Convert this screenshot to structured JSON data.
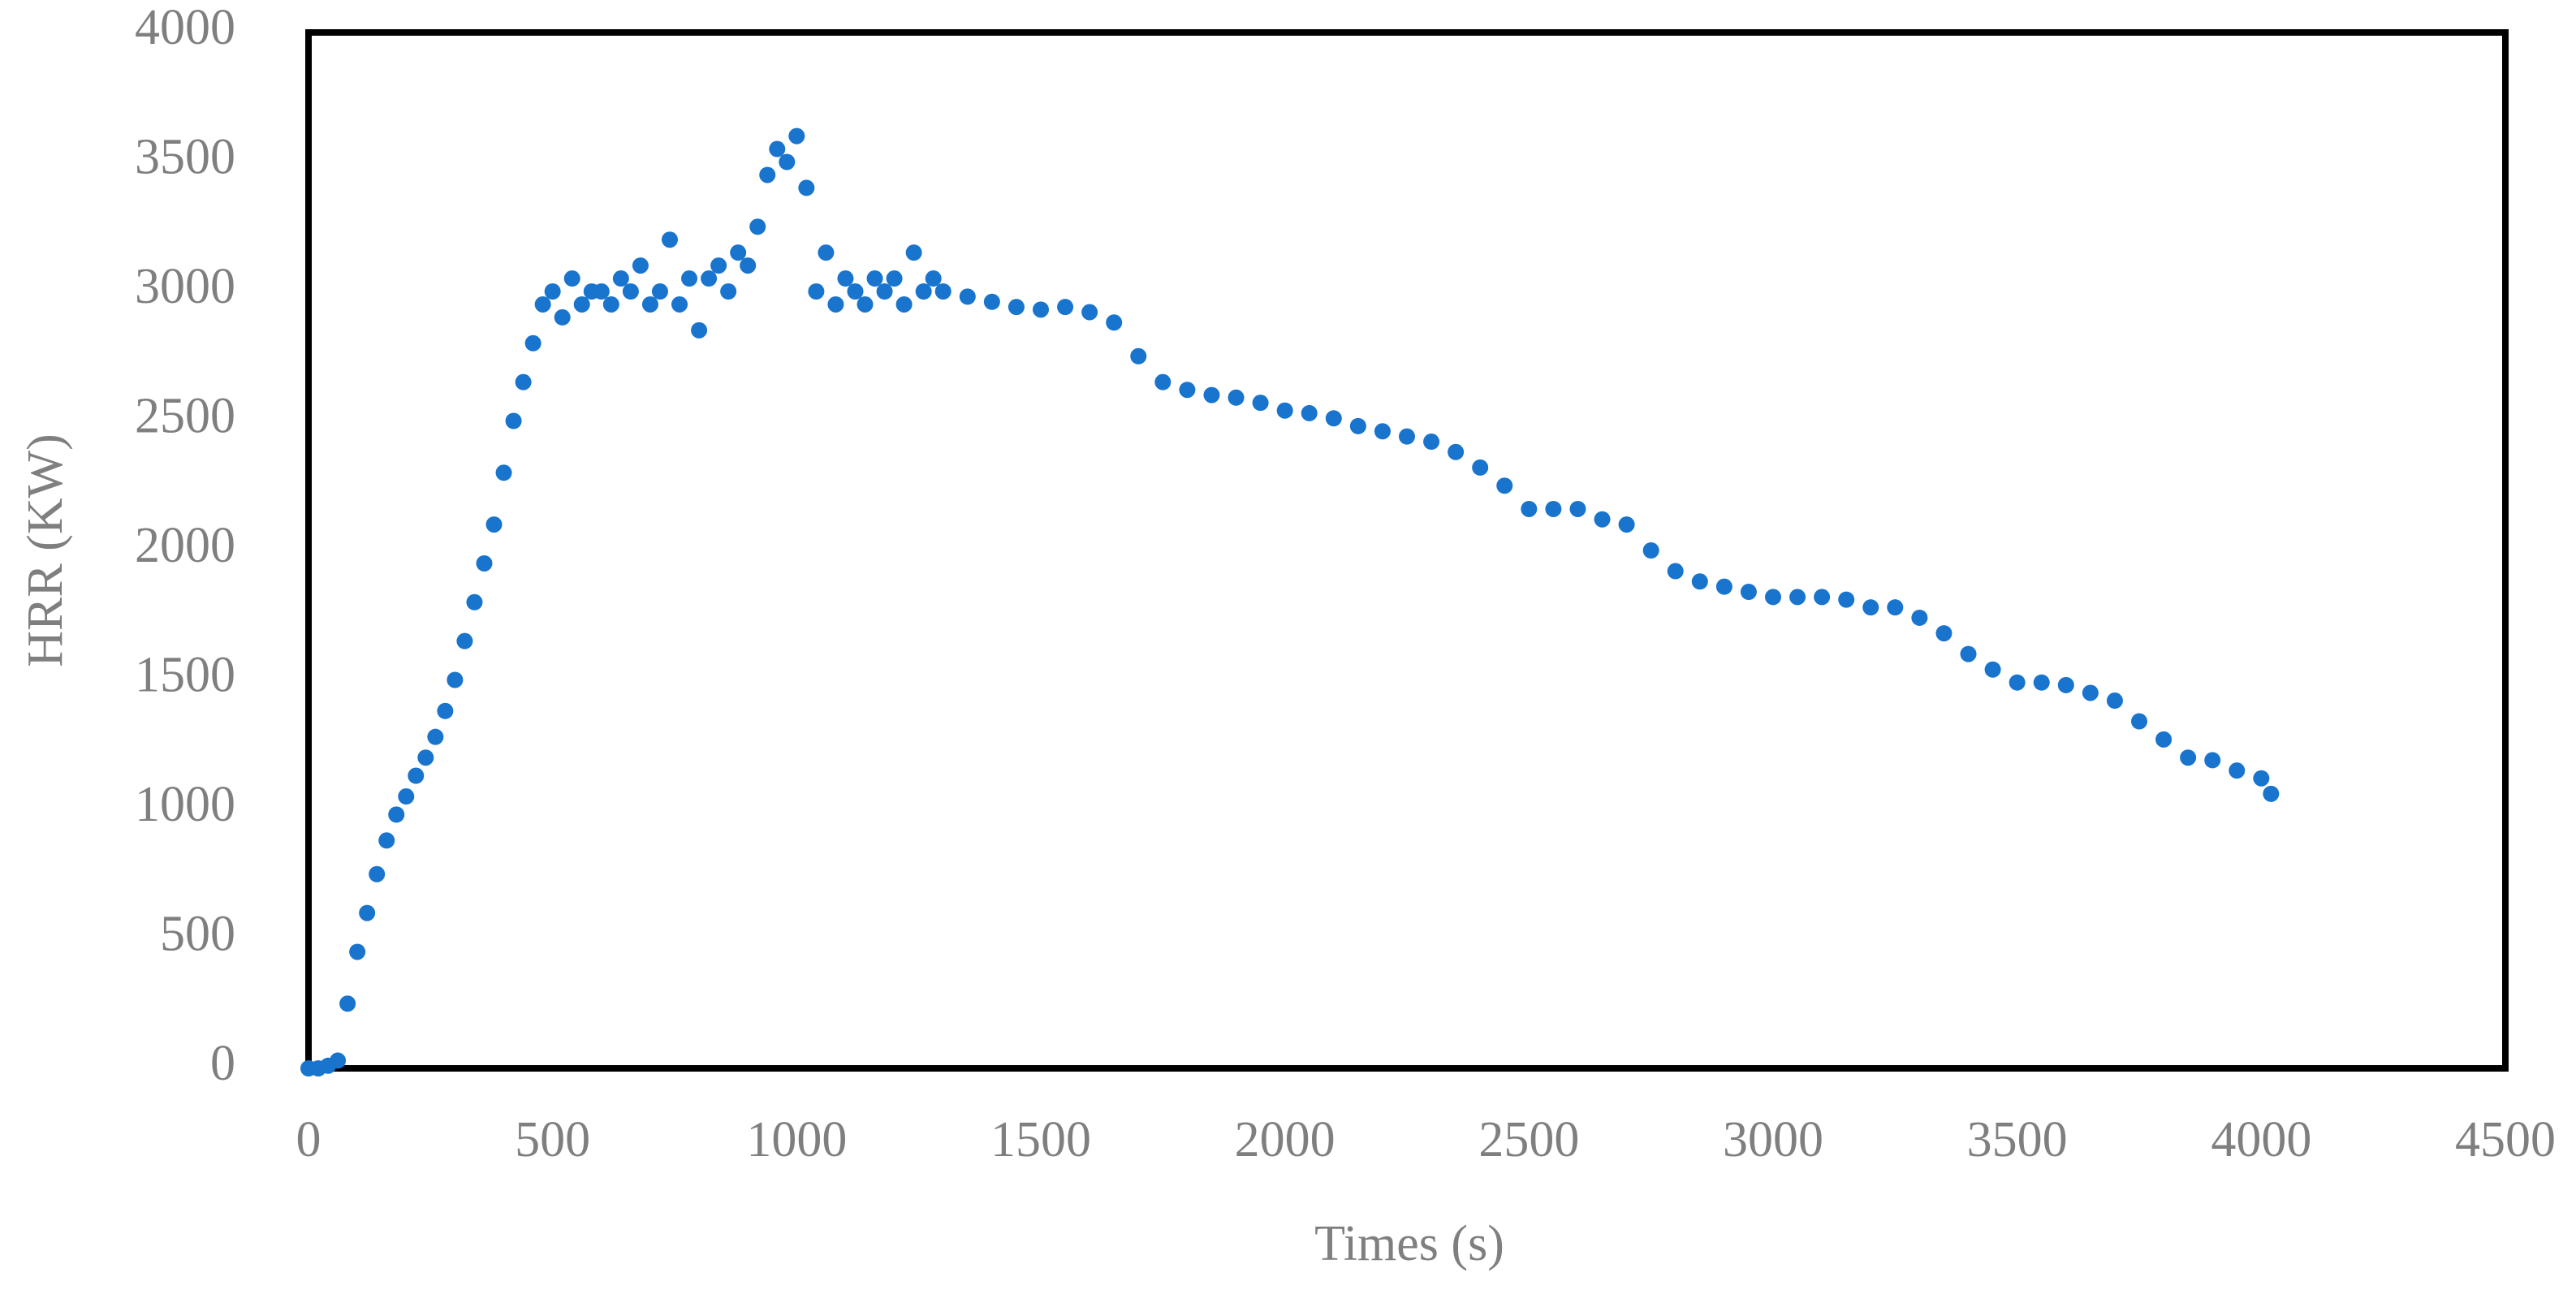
{
  "chart_data": {
    "type": "scatter",
    "xlabel": "Times (s)",
    "ylabel": "HRR (KW)",
    "color": "#1874cd",
    "grid": false,
    "xlim": [
      0,
      4500
    ],
    "xticks": [
      0,
      500,
      1000,
      1500,
      2000,
      2500,
      3000,
      3500,
      4000,
      4500
    ],
    "ylim": [
      0,
      4000
    ],
    "yticks": [
      0,
      500,
      1000,
      1500,
      2000,
      2500,
      3000,
      3500,
      4000
    ],
    "x": [
      0,
      20,
      40,
      60,
      80,
      100,
      120,
      140,
      160,
      180,
      200,
      220,
      240,
      260,
      280,
      300,
      320,
      340,
      360,
      380,
      400,
      420,
      440,
      460,
      480,
      500,
      520,
      540,
      560,
      580,
      600,
      620,
      640,
      660,
      680,
      700,
      720,
      740,
      760,
      780,
      800,
      820,
      840,
      860,
      880,
      900,
      920,
      940,
      960,
      980,
      1000,
      1020,
      1040,
      1060,
      1080,
      1100,
      1120,
      1140,
      1160,
      1180,
      1200,
      1220,
      1240,
      1260,
      1280,
      1300,
      1350,
      1400,
      1450,
      1500,
      1550,
      1600,
      1650,
      1700,
      1750,
      1800,
      1850,
      1900,
      1950,
      2000,
      2050,
      2100,
      2150,
      2200,
      2250,
      2300,
      2350,
      2400,
      2450,
      2500,
      2550,
      2600,
      2650,
      2700,
      2750,
      2800,
      2850,
      2900,
      2950,
      3000,
      3050,
      3100,
      3150,
      3200,
      3250,
      3300,
      3350,
      3400,
      3450,
      3500,
      3550,
      3600,
      3650,
      3700,
      3750,
      3800,
      3850,
      3900,
      3950,
      4000,
      4020
    ],
    "values": [
      0,
      0,
      10,
      30,
      250,
      450,
      600,
      750,
      880,
      980,
      1050,
      1130,
      1200,
      1280,
      1380,
      1500,
      1650,
      1800,
      1950,
      2100,
      2300,
      2500,
      2650,
      2800,
      2950,
      3000,
      2900,
      3050,
      2950,
      3000,
      3000,
      2950,
      3050,
      3000,
      3100,
      2950,
      3000,
      3200,
      2950,
      3050,
      2850,
      3050,
      3100,
      3000,
      3150,
      3100,
      3250,
      3450,
      3550,
      3500,
      3600,
      3400,
      3000,
      3150,
      2950,
      3050,
      3000,
      2950,
      3050,
      3000,
      3050,
      2950,
      3150,
      3000,
      3050,
      3000,
      2980,
      2960,
      2940,
      2930,
      2940,
      2920,
      2880,
      2750,
      2650,
      2620,
      2600,
      2590,
      2570,
      2540,
      2530,
      2510,
      2480,
      2460,
      2440,
      2420,
      2380,
      2320,
      2250,
      2160,
      2160,
      2160,
      2120,
      2100,
      2000,
      1920,
      1880,
      1860,
      1840,
      1820,
      1820,
      1820,
      1810,
      1780,
      1780,
      1740,
      1680,
      1600,
      1540,
      1490,
      1490,
      1480,
      1450,
      1420,
      1340,
      1270,
      1200,
      1190,
      1150,
      1120,
      1060
    ]
  }
}
